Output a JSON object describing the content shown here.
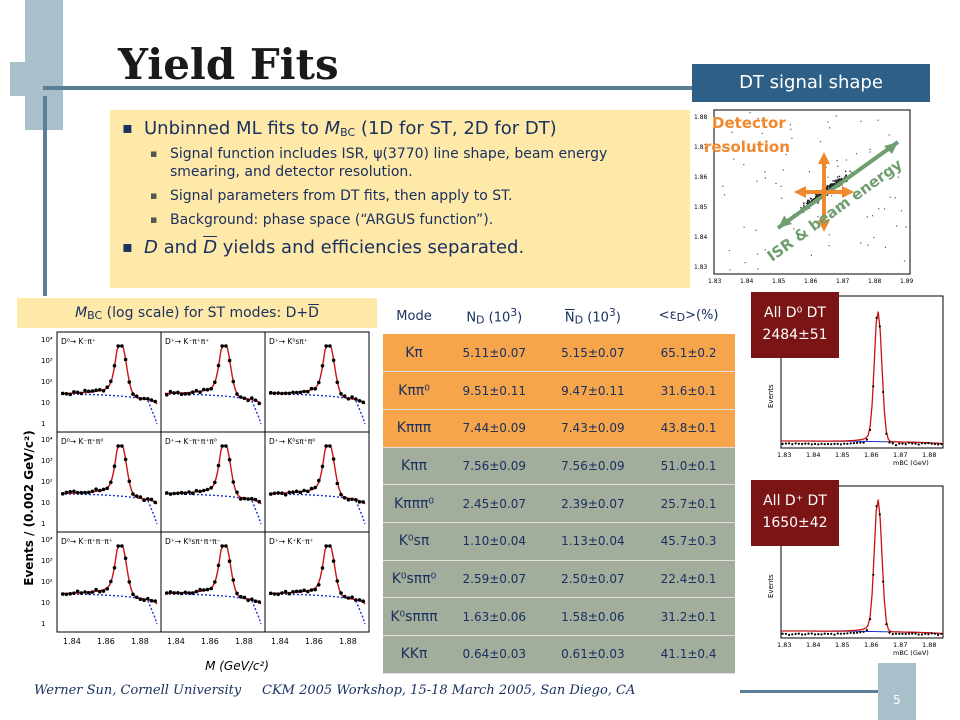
{
  "slide": {
    "title": "Yield Fits",
    "page_number": "5"
  },
  "bullets": {
    "b1_pre": "Unbinned ML fits to ",
    "b1_var": "M",
    "b1_sub": "BC",
    "b1_post": " (1D for ST, 2D for DT)",
    "s1a": "Signal function includes ISR, ",
    "s1_psi": "ψ",
    "s1b": "(3770) line shape, beam energy smearing, and detector resolution.",
    "s2": "Signal parameters from DT fits, then apply to ST.",
    "s3": "Background: phase space (“ARGUS function”).",
    "b2_d": "D",
    "b2_and": " and ",
    "b2_dbar": "D",
    "b2_post": " yields and efficiencies separated."
  },
  "dt_shape": {
    "header": "DT signal shape",
    "label_detector": "Detector",
    "label_resolution": "resolution",
    "label_isr": "ISR & beam energy",
    "y_ticks": [
      "1.88",
      "1.87",
      "1.86",
      "1.85",
      "1.84",
      "1.83"
    ],
    "x_ticks": [
      "1.83",
      "1.84",
      "1.85",
      "1.86",
      "1.87",
      "1.88",
      "1.89"
    ]
  },
  "mbc_panel": {
    "head_var": "M",
    "head_sub": "BC",
    "head_text": " (log scale) for ST modes: D+",
    "head_dbar": "D",
    "ylabel": "Events / (0.002 GeV/c²)",
    "xlabel": "M (GeV/c²)",
    "x_ticks": [
      "1.84",
      "1.86",
      "1.88"
    ],
    "y_ticks": [
      "10⁴",
      "10³",
      "10²",
      "10",
      "1"
    ],
    "mode_labels": [
      "D⁰→ K⁻π⁺",
      "D⁺→ K⁻π⁺π⁺",
      "D⁺→ K⁰sπ⁺",
      "D⁰→ K⁻π⁺π⁰",
      "D⁺→ K⁻π⁺π⁺π⁰",
      "D⁺→ K⁰sπ⁺π⁰",
      "D⁰→ K⁻π⁺π⁻π⁺",
      "D⁺→ K⁰sπ⁺π⁺π⁻",
      "D⁺→ K⁺K⁻π⁺"
    ]
  },
  "table": {
    "headers": {
      "mode": "Mode",
      "nd": "N",
      "nd_sub": "D",
      "nd_unit": " (10",
      "nd_exp": "3",
      "nd_close": ")",
      "ndbar": "N",
      "eff": "<ε",
      "eff_sub": "D",
      "eff_close": ">(%)"
    },
    "rows": [
      {
        "mode": "Kπ",
        "nd": "5.11±0.07",
        "ndbar": "5.15±0.07",
        "eff": "65.1±0.2"
      },
      {
        "mode": "Kππ⁰",
        "nd": "9.51±0.11",
        "ndbar": "9.47±0.11",
        "eff": "31.6±0.1"
      },
      {
        "mode": "Kπππ",
        "nd": "7.44±0.09",
        "ndbar": "7.43±0.09",
        "eff": "43.8±0.1"
      },
      {
        "mode": "Kππ",
        "nd": "7.56±0.09",
        "ndbar": "7.56±0.09",
        "eff": "51.0±0.1"
      },
      {
        "mode": "Kπππ⁰",
        "nd": "2.45±0.07",
        "ndbar": "2.39±0.07",
        "eff": "25.7±0.1"
      },
      {
        "mode": "K⁰sπ",
        "nd": "1.10±0.04",
        "ndbar": "1.13±0.04",
        "eff": "45.7±0.3"
      },
      {
        "mode": "K⁰sππ⁰",
        "nd": "2.59±0.07",
        "ndbar": "2.50±0.07",
        "eff": "22.4±0.1"
      },
      {
        "mode": "K⁰sπππ",
        "nd": "1.63±0.06",
        "ndbar": "1.58±0.06",
        "eff": "31.2±0.1"
      },
      {
        "mode": "KKπ",
        "nd": "0.64±0.03",
        "ndbar": "0.61±0.03",
        "eff": "41.1±0.4"
      }
    ]
  },
  "right_plots": {
    "d0_label": "All D⁰ DT",
    "d0_yield": "2484±51",
    "dp_label": "All D⁺ DT",
    "dp_yield": "1650±42",
    "x_ticks": [
      "1.83",
      "1.84",
      "1.85",
      "1.86",
      "1.87",
      "1.88"
    ],
    "xlabel": "mBC (GeV)",
    "ylabel": "Events"
  },
  "footer": {
    "left": "Werner Sun, Cornell University",
    "mid": "CKM 2005 Workshop, 15-18 March 2005, San Diego, CA"
  },
  "colors": {
    "slide_blue": "#1a3060",
    "accent_blue": "#2e5f86",
    "bullet_bg": "#ffe9a8",
    "orange": "#f6a54a",
    "gray_green": "#a3ad9b",
    "badge_red": "#7b1414",
    "fit_red": "#cc1111",
    "bkg_blue": "#1a33cc"
  }
}
